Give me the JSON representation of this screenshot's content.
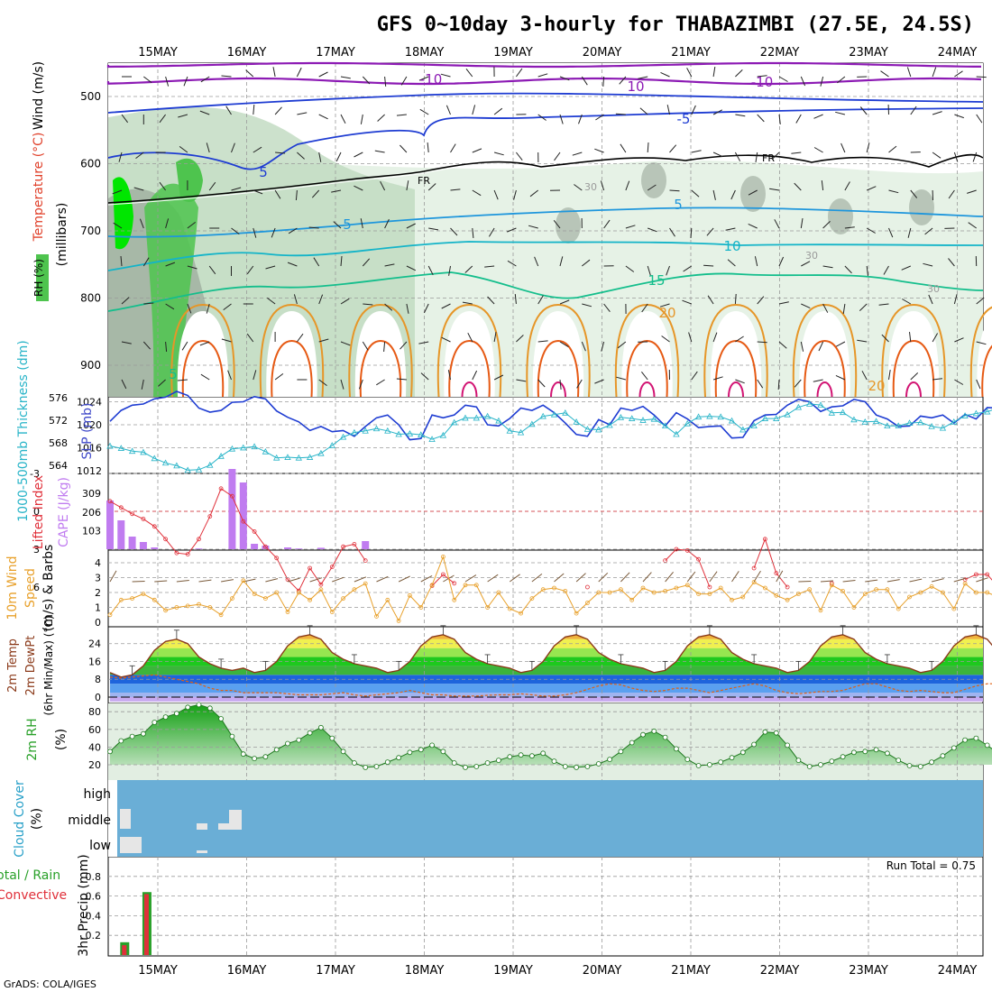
{
  "title": "GFS 0~10day 3-hourly for THABAZIMBI (27.5E, 24.5S)",
  "footer": "GrADS: COLA/IGES",
  "chart_data": [
    {
      "type": "heatmap",
      "panel": "upper-air",
      "ylabel_parts": [
        "RH (%)",
        "Temperature (°C)",
        "Wind (m/s)"
      ],
      "ylabel_units": "(millibars)",
      "x_dates": [
        "15MAY",
        "16MAY",
        "17MAY",
        "18MAY",
        "19MAY",
        "20MAY",
        "21MAY",
        "22MAY",
        "23MAY",
        "24MAY"
      ],
      "y_ticks": [
        500,
        600,
        700,
        800,
        900
      ],
      "y_inverted": true,
      "contour_labels": [
        "-10",
        "10",
        "-10",
        "-5",
        "5",
        "FR",
        "FR",
        "30",
        "5",
        "5",
        "10",
        "30",
        "15",
        "30",
        "20",
        "20",
        "5"
      ],
      "colors": {
        "rh_light": "#e6f2e6",
        "rh_mid": "#bfd9bf",
        "rh_gray": "#9aa79a",
        "rh_green": "#4ec44e",
        "rh_bright": "#00e600",
        "t_minus10": "#8c1ab4",
        "t_minus5": "#1e3cd2",
        "t_fr": "#000000",
        "t_5": "#1e96dc",
        "t_10": "#14b4c8",
        "t_15": "#14be8c",
        "t_20": "#e69628",
        "t_25": "#e65a14",
        "t_30": "#d21473"
      }
    },
    {
      "type": "line",
      "panel": "sea-level-pressure",
      "ylabel_left": "1000-500mb Thickness (dm)",
      "ylabel_right": "SLP (mb)",
      "left_ticks": [
        564,
        568,
        572,
        576
      ],
      "right_ticks": [
        1012,
        1016,
        1020,
        1024
      ],
      "series": [
        {
          "name": "SLP (mb)",
          "color": "#1e3cd2",
          "values": [
            1020.6,
            1022.5,
            1023.4,
            1023.6,
            1024.5,
            1024.8,
            1025.8,
            1025.1,
            1022.9,
            1022.2,
            1022.5,
            1023.9,
            1024.0,
            1024.9,
            1024.5,
            1022.4,
            1021.3,
            1020.5,
            1019.0,
            1019.7,
            1018.8,
            1019.0,
            1018.0,
            1019.7,
            1021.2,
            1021.7,
            1020.0,
            1017.4,
            1017.6,
            1021.7,
            1021.2,
            1021.7,
            1023.4,
            1023.1,
            1020.0,
            1019.8,
            1021.1,
            1022.9,
            1022.5,
            1023.4,
            1022.1,
            1020.3,
            1018.3,
            1018.0,
            1020.9,
            1020.0,
            1022.9,
            1022.5,
            1023.2,
            1021.7,
            1019.8,
            1022.1,
            1021.0,
            1019.5,
            1019.7,
            1019.8,
            1017.7,
            1017.8,
            1020.7,
            1021.7,
            1021.8,
            1023.4,
            1024.4,
            1024.0,
            1022.3,
            1023.1,
            1023.3,
            1024.4,
            1024.0,
            1021.7,
            1021.0,
            1019.7,
            1019.8,
            1021.5,
            1021.2,
            1021.7,
            1020.3,
            1021.8,
            1021.0,
            1023.0,
            1022.9,
            1021.3,
            1018.1,
            1018.6,
            1016.6,
            1018.1,
            1017.3,
            1014.4,
            1013.5,
            1015.0,
            1015.5,
            1014.2,
            1015.3,
            1016.1,
            1017.0
          ]
        },
        {
          "name": "1000-500mb Thickness (dm)",
          "color": "#28b4c8",
          "values": [
            567.4,
            567.0,
            566.5,
            566.3,
            565.2,
            564.4,
            563.9,
            563.1,
            563.2,
            564.0,
            565.6,
            566.9,
            567.1,
            567.3,
            566.4,
            565.3,
            565.4,
            565.3,
            565.4,
            566.1,
            567.5,
            569.0,
            569.8,
            570.1,
            570.5,
            570.1,
            569.5,
            569.6,
            569.4,
            568.6,
            569.3,
            571.6,
            572.4,
            572.4,
            572.7,
            571.9,
            570.1,
            569.8,
            571.3,
            572.7,
            573.0,
            573.3,
            571.7,
            570.4,
            570.3,
            571.1,
            572.5,
            572.3,
            572.0,
            572.2,
            571.0,
            569.5,
            571.4,
            572.6,
            572.7,
            572.6,
            571.9,
            570.3,
            571.0,
            572.3,
            572.3,
            573.0,
            574.3,
            574.9,
            574.7,
            573.3,
            573.4,
            572.1,
            571.7,
            571.8,
            571.0,
            571.0,
            571.5,
            571.6,
            570.9,
            570.6,
            571.7,
            572.8,
            573.2,
            573.5,
            574.2,
            575.0,
            574.1,
            574.9,
            574.2,
            574.3,
            573.2,
            572.7,
            573.5,
            573.0,
            572.1,
            572.6,
            571.7,
            570.9,
            571.4
          ]
        }
      ]
    },
    {
      "type": "bar",
      "panel": "stability",
      "ylabel_left": "Lifted Index",
      "ylabel_right": "CAPE (J/kg)",
      "li_ticks": [
        "-3",
        "0",
        "3",
        "6"
      ],
      "cape_ticks": [
        "309",
        "206",
        "103"
      ],
      "series": [
        {
          "name": "CAPE (J/kg)",
          "color": "#c07cf0",
          "values": [
            270,
            160,
            70,
            40,
            10,
            0,
            0,
            0,
            4,
            0,
            0,
            445,
            370,
            30,
            20,
            0,
            10,
            4,
            0,
            8,
            0,
            0,
            0,
            45
          ]
        },
        {
          "name": "Lifted Index",
          "color": "#e0303a",
          "segments": [
            {
              "start": 0,
              "values": [
                -0.8,
                -0.3,
                0.2,
                0.6,
                1.2,
                2.2,
                3.3,
                3.4,
                2.2,
                0.4,
                -1.8,
                -1.2,
                0.8,
                1.6,
                2.8,
                3.7,
                5.4,
                6.3,
                4.5,
                5.8,
                4.4,
                2.8,
                2.6,
                3.9
              ]
            },
            {
              "start": 29,
              "values": [
                5.9,
                5.0,
                5.7
              ]
            },
            {
              "start": 43,
              "values": [
                6.0
              ]
            },
            {
              "start": 50,
              "values": [
                3.9,
                3.0,
                3.1,
                3.8,
                6.0
              ]
            },
            {
              "start": 58,
              "values": [
                4.5,
                2.2,
                4.9,
                6.0
              ]
            },
            {
              "start": 65,
              "values": [
                5.7
              ]
            },
            {
              "start": 77,
              "values": [
                5.4,
                5.0,
                5.0,
                6.0
              ]
            },
            {
              "start": 87,
              "values": [
                5.2,
                5.4
              ]
            }
          ]
        }
      ]
    },
    {
      "type": "line",
      "panel": "10m-wind",
      "ylabel": "10m Wind Speed (m/s) & Barbs",
      "y_ticks": [
        0,
        1,
        2,
        3,
        4
      ],
      "series": [
        {
          "name": "10m Wind Speed",
          "color": "#e8a02a",
          "values": [
            0.5,
            1.5,
            1.6,
            1.9,
            1.5,
            0.8,
            1.0,
            1.1,
            1.2,
            1.0,
            0.5,
            1.6,
            2.8,
            1.9,
            1.6,
            2.0,
            0.7,
            2.0,
            1.5,
            2.2,
            0.7,
            1.6,
            2.2,
            2.6,
            0.4,
            1.5,
            0.1,
            1.8,
            1.0,
            2.5,
            4.4,
            1.5,
            2.5,
            2.5,
            1.0,
            2.0,
            0.9,
            0.6,
            1.6,
            2.2,
            2.3,
            2.1,
            0.6,
            1.3,
            2.0,
            2.0,
            2.2,
            1.5,
            2.3,
            2.0,
            2.1,
            2.3,
            2.5,
            1.9,
            1.9,
            2.3,
            1.5,
            1.7,
            2.7,
            2.3,
            1.8,
            1.5,
            1.9,
            2.2,
            0.8,
            2.5,
            2.1,
            1.0,
            1.9,
            2.2,
            2.2,
            0.9,
            1.7,
            2.0,
            2.4,
            2.0,
            0.9,
            2.6,
            2.0,
            2.0,
            1.7,
            2.0,
            1.4,
            2.0,
            1.8,
            2.2,
            0.2,
            2.5,
            2.3,
            1.3,
            2.3,
            1.7,
            1.6,
            1.2,
            2.6,
            2.1,
            2.3
          ]
        }
      ]
    },
    {
      "type": "area",
      "panel": "2m-temp",
      "ylabel": "2m Temp 2m DewPt (6hr Min/Max) (°C)",
      "y_ticks": [
        0,
        8,
        16,
        24
      ],
      "series": [
        {
          "name": "2m Temp",
          "color": "#8b3a1a",
          "cycle": [
            13,
            11,
            12,
            16,
            23,
            27,
            28,
            26,
            20,
            17,
            15,
            14
          ]
        },
        {
          "name": "2m DewPt",
          "color": "#e06014",
          "values": [
            9,
            8.5,
            9,
            9.5,
            10,
            9,
            8,
            7,
            6,
            4,
            3,
            3,
            2,
            2,
            2,
            2,
            1.5,
            1,
            1,
            1,
            1.5,
            2,
            1,
            0.5,
            1,
            1.5,
            2,
            3,
            2,
            1,
            1,
            0.5,
            0.5,
            0.5,
            0.8,
            1,
            1,
            1.5,
            1,
            0.5,
            0.5,
            1,
            2,
            3.5,
            5,
            6,
            5.5,
            4,
            3,
            2.5,
            3,
            4,
            4,
            3,
            2,
            3,
            4,
            5,
            6,
            5,
            3,
            2,
            1.5,
            2,
            2.5,
            2.5,
            3,
            4.5,
            6,
            6,
            4.5,
            3,
            2.5,
            3,
            2.5,
            2,
            2,
            3.5,
            5,
            6,
            6,
            3.5,
            2,
            2,
            3.5,
            4.5,
            5,
            4,
            3,
            2,
            2,
            3,
            3,
            4,
            5.5,
            6
          ]
        }
      ]
    },
    {
      "type": "area",
      "panel": "2m-rh",
      "ylabel": "2m RH (%)",
      "y_ticks": [
        20,
        40,
        60,
        80
      ],
      "series": [
        {
          "name": "2m RH",
          "color": "#28a028",
          "values": [
            35,
            47,
            52,
            55,
            68,
            74,
            78,
            85,
            88,
            84,
            72,
            52,
            32,
            27,
            29,
            37,
            44,
            48,
            56,
            62,
            50,
            35,
            22,
            17,
            18,
            23,
            28,
            34,
            37,
            42,
            35,
            22,
            17,
            18,
            22,
            25,
            29,
            31,
            30,
            33,
            24,
            18,
            17,
            18,
            21,
            26,
            35,
            45,
            54,
            58,
            51,
            38,
            26,
            19,
            20,
            23,
            28,
            34,
            43,
            57,
            56,
            42,
            25,
            18,
            20,
            24,
            29,
            34,
            35,
            37,
            33,
            25,
            19,
            18,
            23,
            30,
            39,
            48,
            50,
            42,
            33,
            24,
            19,
            21,
            28,
            33,
            38,
            42,
            41,
            35,
            24,
            18,
            20,
            23,
            29,
            34,
            46,
            43
          ]
        }
      ]
    },
    {
      "type": "heatmap",
      "panel": "cloud-cover",
      "ylabel": "Cloud Cover (%)",
      "y_categories": [
        "high",
        "middle",
        "low"
      ],
      "background": "#6aaed6"
    },
    {
      "type": "bar",
      "panel": "3hr-precip",
      "ylabel_left": "3hr Precip (mm)",
      "ylabel_parts": [
        "Total / Rain",
        "Convective"
      ],
      "y_ticks": [
        0.2,
        0.4,
        0.6,
        0.8
      ],
      "run_total": "Run Total = 0.75",
      "series": [
        {
          "name": "Total / Rain",
          "color": "#28a028",
          "values": [
            0.13,
            0.64
          ]
        },
        {
          "name": "Convective",
          "color": "#e0303a",
          "values": [
            0.1,
            0.62
          ]
        }
      ]
    }
  ]
}
